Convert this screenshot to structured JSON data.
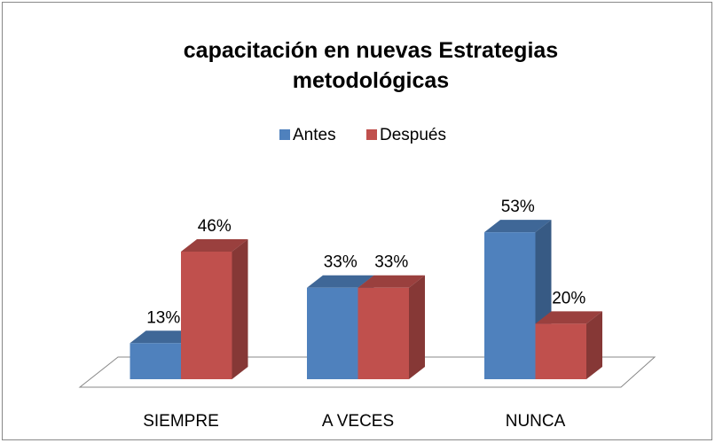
{
  "chart_data": {
    "type": "bar3d",
    "title": "capacitación en nuevas Estrategias metodológicas",
    "categories": [
      "SIEMPRE",
      "A VECES",
      "NUNCA"
    ],
    "series": [
      {
        "name": "Antes",
        "color": "#4f81bd",
        "values": [
          13,
          33,
          53
        ],
        "value_labels": [
          "13%",
          "33%",
          "53%"
        ]
      },
      {
        "name": "Después",
        "color": "#c0504d",
        "values": [
          46,
          33,
          20
        ],
        "value_labels": [
          "46%",
          "33%",
          "20%"
        ]
      }
    ],
    "legend": "top"
  }
}
